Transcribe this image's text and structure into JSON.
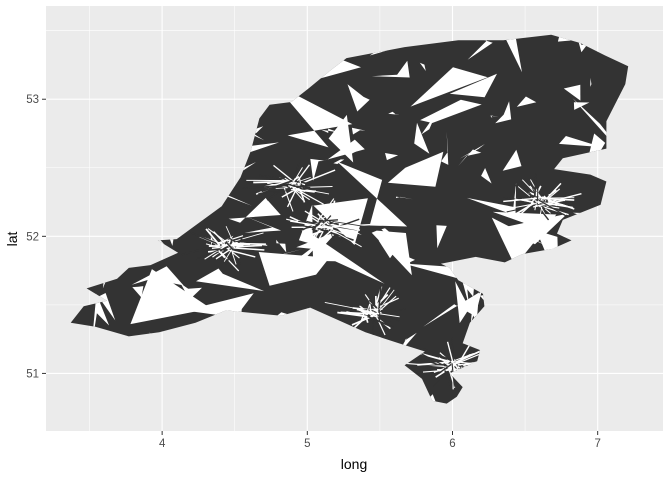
{
  "chart_data": {
    "type": "map",
    "xlabel": "long",
    "ylabel": "lat",
    "xlim": [
      3.2,
      7.45
    ],
    "ylim": [
      50.58,
      53.68
    ],
    "x_ticks": [
      {
        "value": 4,
        "label": "4"
      },
      {
        "value": 5,
        "label": "5"
      },
      {
        "value": 6,
        "label": "6"
      },
      {
        "value": 7,
        "label": "7"
      }
    ],
    "y_ticks": [
      {
        "value": 51,
        "label": "51"
      },
      {
        "value": 52,
        "label": "52"
      },
      {
        "value": 53,
        "label": "53"
      }
    ],
    "grid": true,
    "legend": "none",
    "panel_color": "#ebebeb",
    "grid_color": "#ffffff",
    "fill_color": "#333333",
    "outline": [
      [
        3.37,
        51.37
      ],
      [
        3.54,
        51.34
      ],
      [
        3.77,
        51.27
      ],
      [
        3.98,
        51.3
      ],
      [
        4.23,
        51.37
      ],
      [
        4.44,
        51.46
      ],
      [
        4.82,
        51.42
      ],
      [
        5.02,
        51.48
      ],
      [
        5.4,
        51.3
      ],
      [
        5.63,
        51.22
      ],
      [
        5.81,
        51.16
      ],
      [
        5.67,
        51.06
      ],
      [
        5.79,
        50.96
      ],
      [
        5.86,
        50.8
      ],
      [
        5.96,
        50.78
      ],
      [
        6.03,
        50.83
      ],
      [
        6.07,
        50.9
      ],
      [
        5.98,
        51.0
      ],
      [
        6.17,
        51.09
      ],
      [
        6.19,
        51.17
      ],
      [
        6.07,
        51.22
      ],
      [
        6.12,
        51.37
      ],
      [
        6.22,
        51.49
      ],
      [
        6.21,
        51.58
      ],
      [
        6.04,
        51.68
      ],
      [
        5.98,
        51.77
      ],
      [
        5.92,
        51.8
      ],
      [
        6.16,
        51.85
      ],
      [
        6.36,
        51.81
      ],
      [
        6.48,
        51.87
      ],
      [
        6.69,
        51.91
      ],
      [
        6.82,
        51.97
      ],
      [
        6.72,
        52.02
      ],
      [
        6.76,
        52.12
      ],
      [
        7.02,
        52.23
      ],
      [
        7.06,
        52.4
      ],
      [
        6.95,
        52.45
      ],
      [
        6.7,
        52.49
      ],
      [
        6.76,
        52.57
      ],
      [
        7.06,
        52.64
      ],
      [
        7.06,
        52.84
      ],
      [
        7.19,
        53.11
      ],
      [
        7.21,
        53.24
      ],
      [
        7.05,
        53.32
      ],
      [
        6.88,
        53.41
      ],
      [
        6.68,
        53.47
      ],
      [
        6.35,
        53.43
      ],
      [
        6.04,
        53.43
      ],
      [
        5.67,
        53.38
      ],
      [
        5.27,
        53.3
      ],
      [
        5.16,
        53.21
      ],
      [
        5.01,
        53.08
      ],
      [
        4.89,
        52.98
      ],
      [
        4.74,
        52.96
      ],
      [
        4.67,
        52.86
      ],
      [
        4.61,
        52.62
      ],
      [
        4.54,
        52.43
      ],
      [
        4.41,
        52.22
      ],
      [
        4.23,
        52.08
      ],
      [
        4.1,
        51.98
      ],
      [
        3.97,
        51.97
      ],
      [
        4.11,
        51.88
      ],
      [
        3.92,
        51.79
      ],
      [
        3.77,
        51.77
      ],
      [
        3.69,
        51.69
      ],
      [
        3.48,
        51.62
      ],
      [
        3.62,
        51.53
      ],
      [
        3.46,
        51.49
      ]
    ]
  }
}
